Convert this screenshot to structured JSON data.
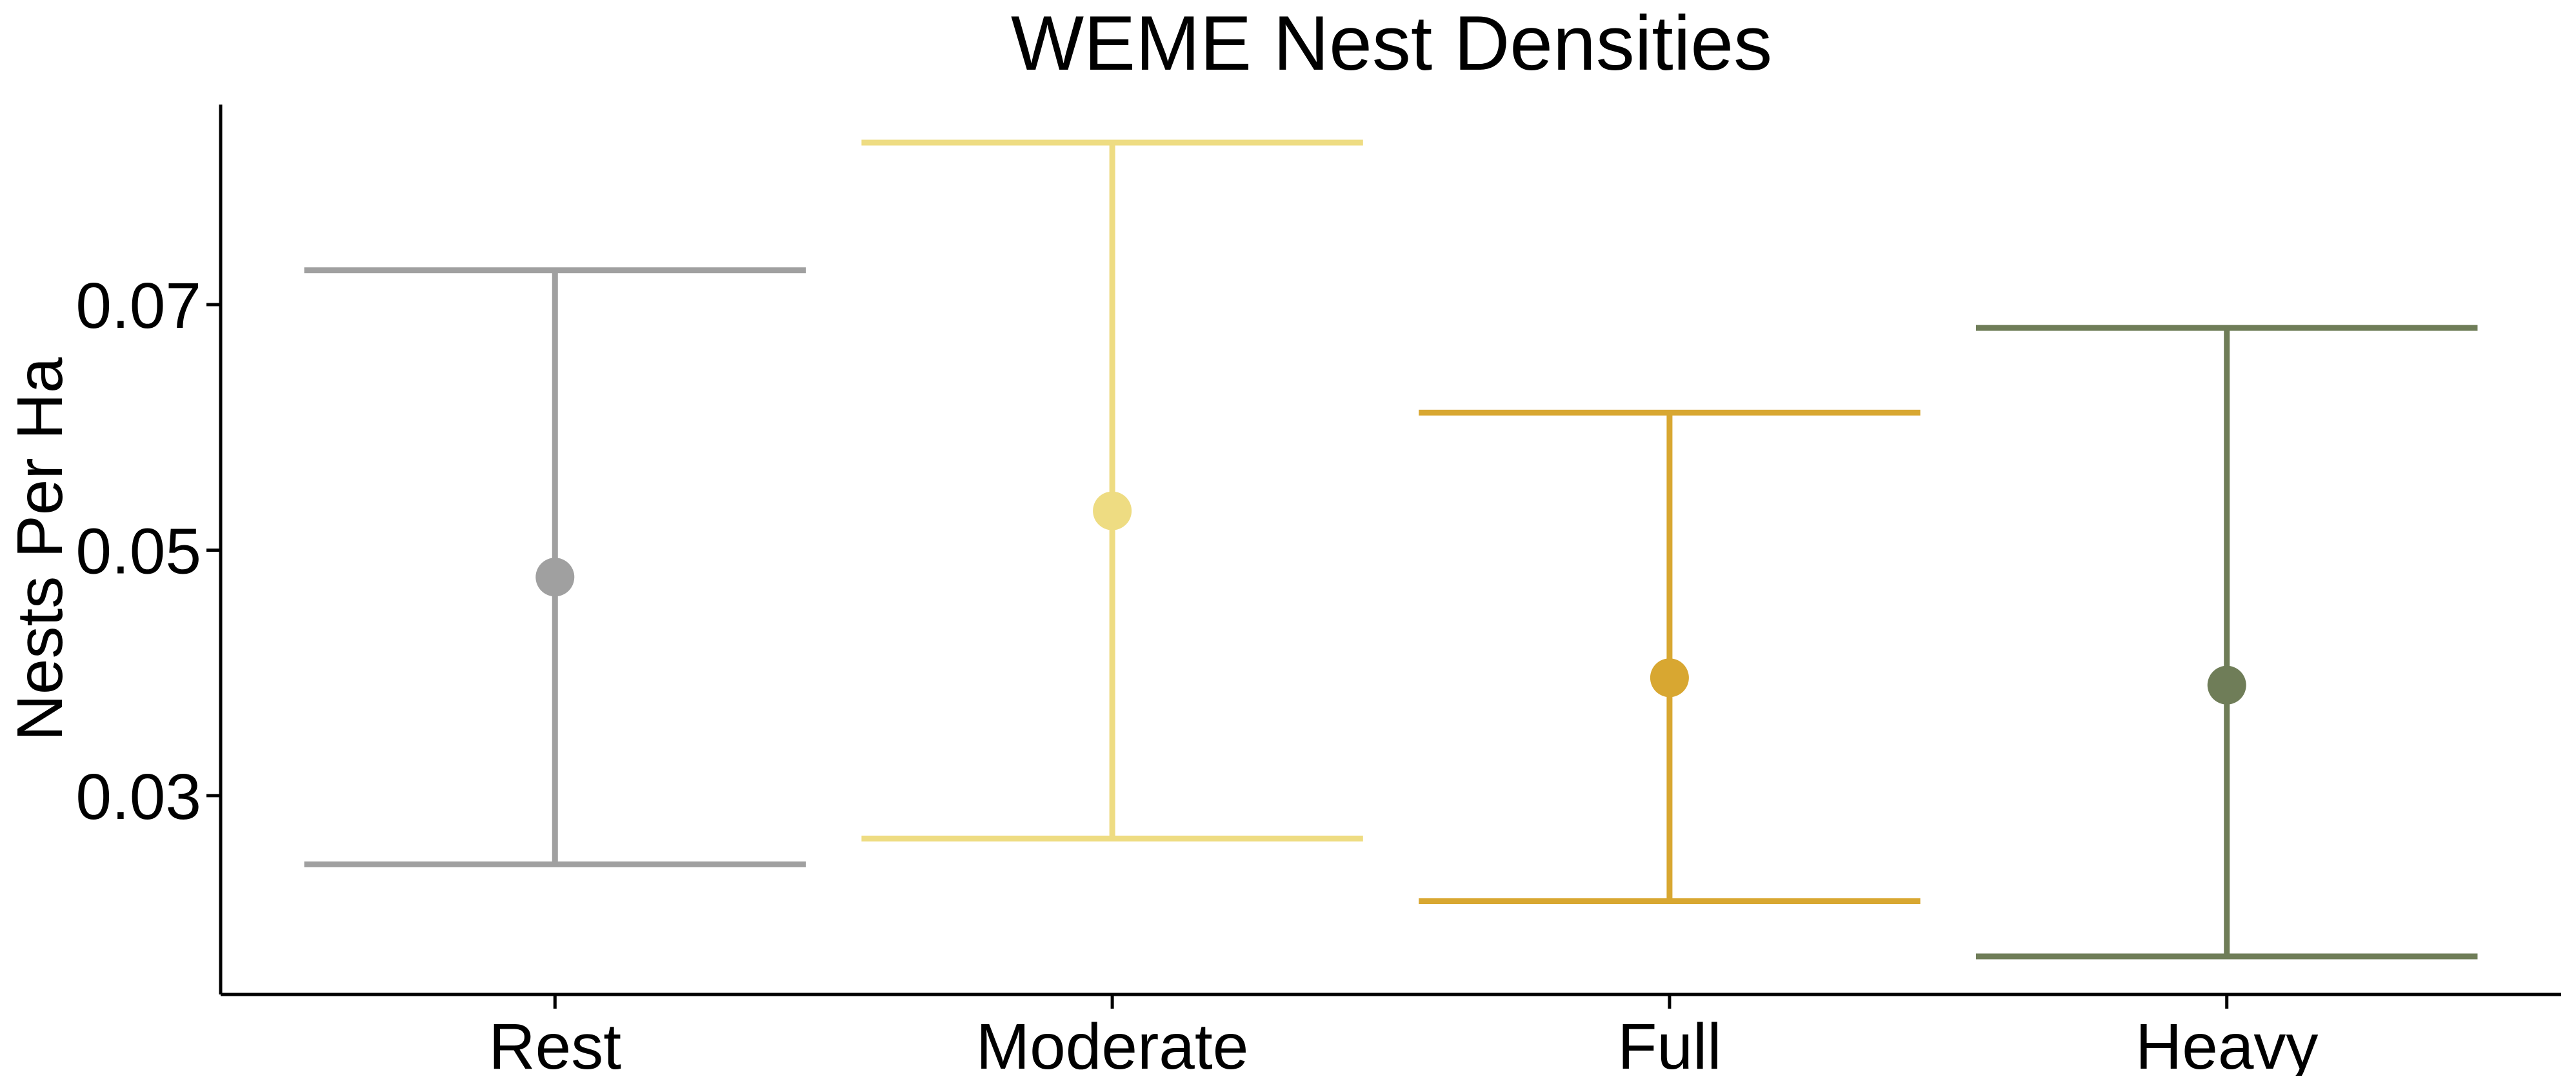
{
  "chart_data": {
    "type": "errorbar",
    "title": "WEME Nest Densities",
    "xlabel": "",
    "ylabel": "Nests Per Ha",
    "categories": [
      "Rest",
      "Moderate",
      "Full",
      "Heavy"
    ],
    "ylim": [
      0.0138,
      0.0863
    ],
    "yticks": [
      0.03,
      0.05,
      0.07
    ],
    "ytick_labels": [
      "0.03",
      "0.05",
      "0.07"
    ],
    "grid": false,
    "legend": "none",
    "points": [
      {
        "category": "Rest",
        "estimate": 0.0478,
        "lower": 0.0244,
        "upper": 0.0728,
        "color": "#a0a0a0"
      },
      {
        "category": "Moderate",
        "estimate": 0.0532,
        "lower": 0.0265,
        "upper": 0.0832,
        "color": "#eedc82"
      },
      {
        "category": "Full",
        "estimate": 0.0396,
        "lower": 0.0214,
        "upper": 0.0612,
        "color": "#d8a731"
      },
      {
        "category": "Heavy",
        "estimate": 0.039,
        "lower": 0.0169,
        "upper": 0.0681,
        "color": "#6f7d58"
      }
    ]
  }
}
